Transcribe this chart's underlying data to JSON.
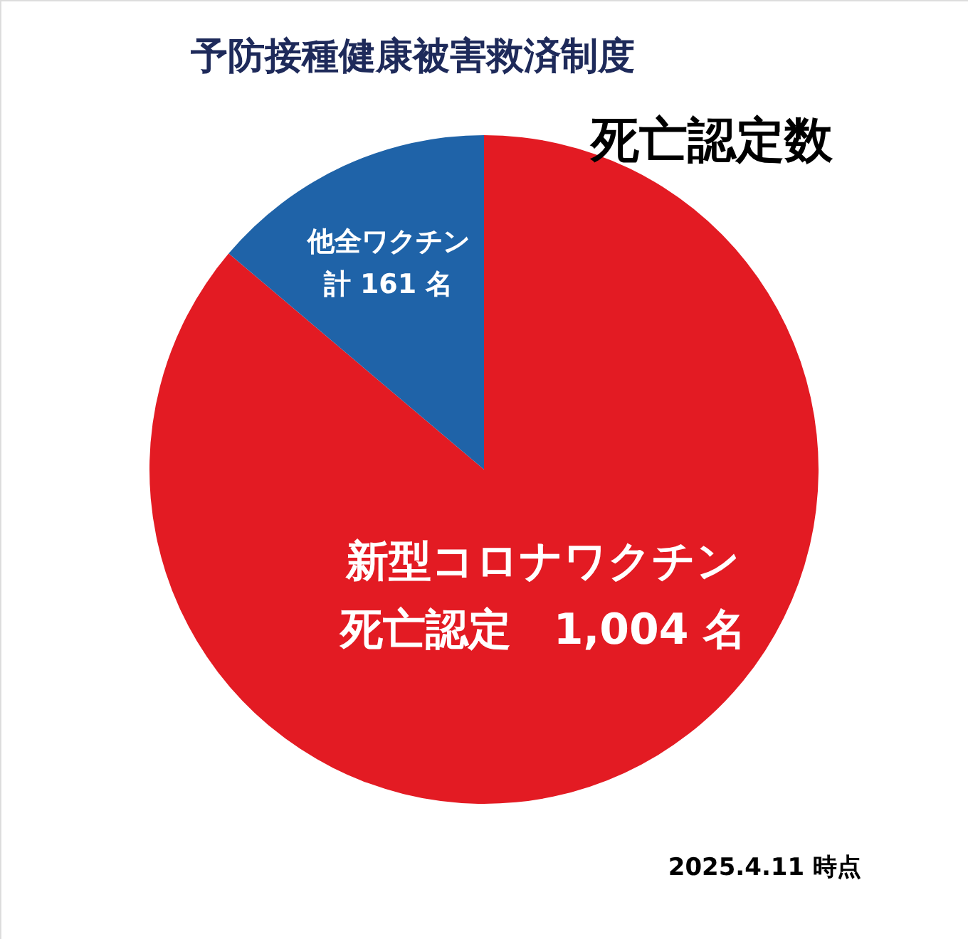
{
  "chart_data": {
    "type": "pie",
    "title": "予防接種健康被害救済制度",
    "subtitle": "死亡認定数",
    "categories": [
      "新型コロナワクチン",
      "他全ワクチン"
    ],
    "values": [
      1004,
      161
    ],
    "value_labels": [
      "死亡認定　1,004 名",
      "計 161 名"
    ],
    "colors": [
      "#e31b23",
      "#1f63a8"
    ],
    "annotations": [
      "2025.4.11 時点"
    ]
  }
}
